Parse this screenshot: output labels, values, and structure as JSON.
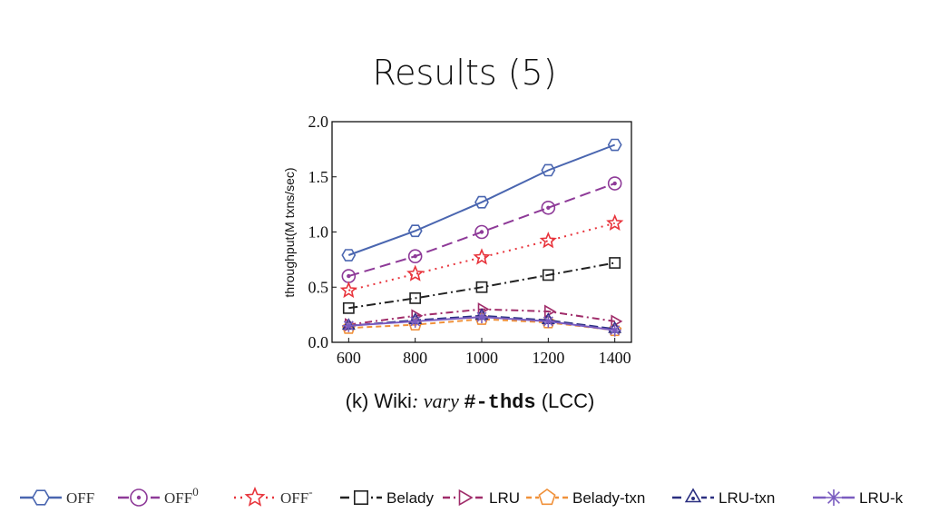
{
  "slide": {
    "title": "Results (5)"
  },
  "chart_data": {
    "type": "line",
    "caption_prefix": "(k) Wiki",
    "caption_vary": ": vary ",
    "caption_code": "#-thds",
    "caption_suffix": " (LCC)",
    "ylabel": "throughput(M txns/sec)",
    "xlabel": "",
    "x": [
      600,
      800,
      1000,
      1200,
      1400
    ],
    "x_tick_labels": [
      "600",
      "800",
      "1000",
      "1200",
      "1400"
    ],
    "y_tick_labels": [
      "0.0",
      "0.5",
      "1.0",
      "1.5",
      "2.0"
    ],
    "xlim": [
      550,
      1450
    ],
    "ylim": [
      0,
      2.0
    ],
    "grid": false,
    "legend_position": "bottom",
    "series": [
      {
        "name": "OFF",
        "sup": "",
        "marker": "hexagon",
        "color": "#4a66b0",
        "dash": "",
        "values": [
          0.79,
          1.01,
          1.27,
          1.56,
          1.79
        ]
      },
      {
        "name": "OFF",
        "sup": "0",
        "marker": "circle-dot",
        "color": "#8e3a98",
        "dash": "12,6",
        "values": [
          0.6,
          0.78,
          1.0,
          1.22,
          1.44
        ]
      },
      {
        "name": "OFF",
        "sup": "-",
        "marker": "star",
        "color": "#e8343c",
        "dash": "2,5",
        "values": [
          0.47,
          0.62,
          0.77,
          0.92,
          1.08
        ]
      },
      {
        "name": "Belady",
        "sup": "",
        "marker": "square",
        "color": "#222222",
        "dash": "10,4,2,4",
        "values": [
          0.31,
          0.4,
          0.5,
          0.61,
          0.72
        ]
      },
      {
        "name": "LRU",
        "sup": "",
        "marker": "triangle-right",
        "color": "#a02c6a",
        "dash": "8,4,2,4",
        "values": [
          0.16,
          0.24,
          0.3,
          0.28,
          0.19
        ]
      },
      {
        "name": "Belady-txn",
        "sup": "",
        "marker": "pentagon",
        "color": "#f0913a",
        "dash": "6,4",
        "values": [
          0.13,
          0.16,
          0.21,
          0.18,
          0.11
        ]
      },
      {
        "name": "LRU-txn",
        "sup": "",
        "marker": "triangle",
        "color": "#2a2f80",
        "dash": "10,4",
        "values": [
          0.15,
          0.2,
          0.24,
          0.2,
          0.12
        ]
      },
      {
        "name": "LRU-k",
        "sup": "",
        "marker": "asterisk",
        "color": "#7a5cc0",
        "dash": "",
        "values": [
          0.15,
          0.19,
          0.23,
          0.19,
          0.11
        ]
      }
    ]
  }
}
